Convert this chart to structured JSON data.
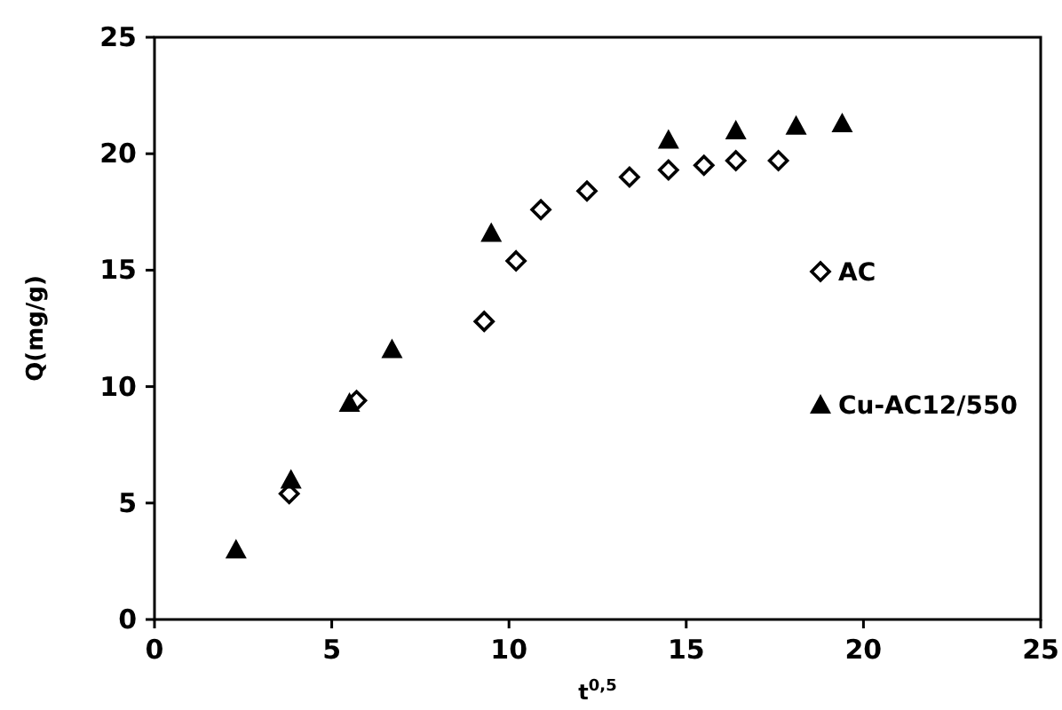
{
  "chart_data": {
    "type": "scatter",
    "xlabel": "t$^{0,5}$",
    "ylabel": "Q(mg/g)",
    "xlim": [
      0,
      25
    ],
    "ylim": [
      0,
      25
    ],
    "xticks": [
      0,
      5,
      10,
      15,
      20,
      25
    ],
    "yticks": [
      0,
      5,
      10,
      15,
      20,
      25
    ],
    "grid": false,
    "legend": "right",
    "series": [
      {
        "name": "AC",
        "color": "#000000",
        "marker": "diamond",
        "x": [
          3.8,
          5.7,
          9.3,
          10.2,
          10.9,
          12.2,
          13.4,
          14.5,
          15.5,
          16.4,
          17.6
        ],
        "values": [
          5.4,
          9.4,
          12.8,
          15.4,
          17.6,
          18.4,
          19.0,
          19.3,
          19.5,
          19.7,
          19.7
        ]
      },
      {
        "name": "Cu-AC12/550",
        "color": "#000000",
        "marker": "triangle",
        "x": [
          2.3,
          3.85,
          5.5,
          6.7,
          9.5,
          14.5,
          16.4,
          18.1,
          19.4
        ],
        "values": [
          3.0,
          6.0,
          9.3,
          11.6,
          16.6,
          20.6,
          21.0,
          21.2,
          21.3
        ]
      }
    ]
  }
}
